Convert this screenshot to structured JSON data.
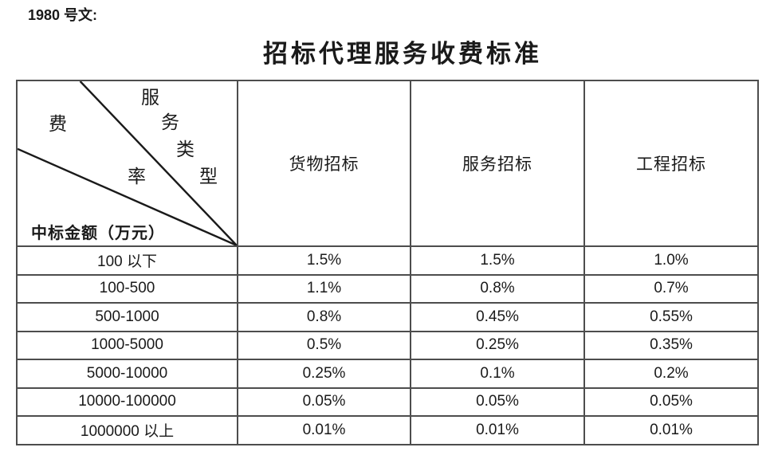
{
  "doc_ref": "1980 号文:",
  "title": "招标代理服务收费标准",
  "colors": {
    "table_border": "#4d4d4d",
    "diagonal_line": "#1a1a1a",
    "text": "#1a1a1a",
    "background": "#ffffff"
  },
  "table": {
    "corner": {
      "service_chars": [
        "服",
        "务",
        "类",
        "型"
      ],
      "rate_chars": [
        "费",
        "率"
      ],
      "amount_label": "中标金额（万元）"
    },
    "columns": [
      "货物招标",
      "服务招标",
      "工程招标"
    ],
    "rows": [
      {
        "range": "100 以下",
        "values": [
          "1.5%",
          "1.5%",
          "1.0%"
        ]
      },
      {
        "range": "100-500",
        "values": [
          "1.1%",
          "0.8%",
          "0.7%"
        ]
      },
      {
        "range": "500-1000",
        "values": [
          "0.8%",
          "0.45%",
          "0.55%"
        ]
      },
      {
        "range": "1000-5000",
        "values": [
          "0.5%",
          "0.25%",
          "0.35%"
        ]
      },
      {
        "range": "5000-10000",
        "values": [
          "0.25%",
          "0.1%",
          "0.2%"
        ]
      },
      {
        "range": "10000-100000",
        "values": [
          "0.05%",
          "0.05%",
          "0.05%"
        ]
      },
      {
        "range": "1000000 以上",
        "values": [
          "0.01%",
          "0.01%",
          "0.01%"
        ]
      }
    ]
  }
}
